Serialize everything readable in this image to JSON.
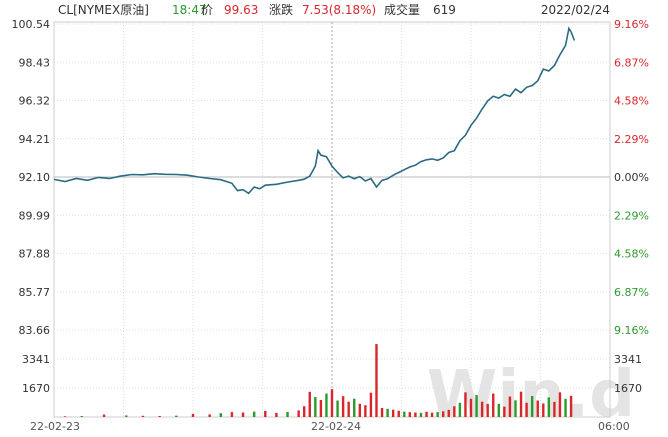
{
  "header": {
    "symbol": "CL[NYMEX原油]",
    "time": "18:47",
    "price_label": "价",
    "price": "99.63",
    "change_label": "涨跌",
    "change": "7.53(8.18%)",
    "volume_label": "成交量",
    "volume": "619",
    "date": "2022/02/24"
  },
  "watermark": "Win.d",
  "colors": {
    "line": "#2a6b82",
    "up": "#d9262b",
    "down": "#2c9a2c",
    "grid": "#dddddd",
    "header_time": "#2c9a2c",
    "header_price": "#d9262b",
    "header_change": "#d9262b",
    "neutral": "#333333"
  },
  "chart_data": {
    "type": "line",
    "prev_close": 92.1,
    "price_ticks": [
      "100.54",
      "98.43",
      "96.32",
      "94.21",
      "92.10",
      "89.99",
      "87.88",
      "85.77",
      "83.66"
    ],
    "pct_ticks": [
      "9.16%",
      "6.87%",
      "4.58%",
      "2.29%",
      "0.00%",
      "2.29%",
      "4.58%",
      "6.87%",
      "9.16%"
    ],
    "price_range": [
      83.66,
      100.54
    ],
    "volume_ticks": [
      "3341",
      "1670"
    ],
    "volume_max": 5011,
    "x_tick_labels": [
      "22-02-23",
      "22-02-24",
      "06:00"
    ],
    "x_range": [
      0,
      100
    ],
    "price_points": [
      [
        0,
        91.97
      ],
      [
        2,
        91.85
      ],
      [
        4,
        92.02
      ],
      [
        6,
        91.92
      ],
      [
        8,
        92.08
      ],
      [
        10,
        92.02
      ],
      [
        12,
        92.15
      ],
      [
        14,
        92.24
      ],
      [
        16,
        92.22
      ],
      [
        18,
        92.28
      ],
      [
        20,
        92.25
      ],
      [
        22,
        92.24
      ],
      [
        24,
        92.2
      ],
      [
        26,
        92.1
      ],
      [
        28,
        92.02
      ],
      [
        30,
        91.95
      ],
      [
        32,
        91.75
      ],
      [
        33,
        91.35
      ],
      [
        34,
        91.4
      ],
      [
        35,
        91.2
      ],
      [
        36,
        91.55
      ],
      [
        37,
        91.45
      ],
      [
        38,
        91.65
      ],
      [
        40,
        91.7
      ],
      [
        42,
        91.82
      ],
      [
        44,
        91.92
      ],
      [
        45,
        91.98
      ],
      [
        46,
        92.15
      ],
      [
        47,
        92.7
      ],
      [
        47.5,
        93.55
      ],
      [
        48,
        93.3
      ],
      [
        49,
        93.22
      ],
      [
        50,
        92.7
      ],
      [
        51,
        92.35
      ],
      [
        52,
        92.05
      ],
      [
        53,
        92.15
      ],
      [
        54,
        92.0
      ],
      [
        55,
        92.12
      ],
      [
        56,
        91.88
      ],
      [
        57,
        92.02
      ],
      [
        58,
        91.55
      ],
      [
        59,
        91.92
      ],
      [
        60,
        92.0
      ],
      [
        61,
        92.2
      ],
      [
        62,
        92.35
      ],
      [
        63,
        92.5
      ],
      [
        64,
        92.65
      ],
      [
        65,
        92.75
      ],
      [
        66,
        92.95
      ],
      [
        67,
        93.05
      ],
      [
        68,
        93.1
      ],
      [
        69,
        93.02
      ],
      [
        70,
        93.15
      ],
      [
        71,
        93.45
      ],
      [
        72,
        93.55
      ],
      [
        73,
        94.1
      ],
      [
        74,
        94.4
      ],
      [
        75,
        94.95
      ],
      [
        76,
        95.35
      ],
      [
        77,
        95.85
      ],
      [
        78,
        96.3
      ],
      [
        79,
        96.55
      ],
      [
        80,
        96.45
      ],
      [
        81,
        96.65
      ],
      [
        82,
        96.55
      ],
      [
        83,
        96.95
      ],
      [
        84,
        96.75
      ],
      [
        85,
        97.05
      ],
      [
        86,
        97.15
      ],
      [
        87,
        97.4
      ],
      [
        88,
        98.05
      ],
      [
        89,
        97.95
      ],
      [
        90,
        98.25
      ],
      [
        91,
        98.85
      ],
      [
        92,
        99.35
      ],
      [
        92.6,
        100.3
      ],
      [
        93,
        100.1
      ],
      [
        93.6,
        99.63
      ]
    ],
    "volume_bars": [
      [
        2,
        40,
        "up"
      ],
      [
        5,
        60,
        "down"
      ],
      [
        9,
        140,
        "up"
      ],
      [
        13,
        90,
        "down"
      ],
      [
        16,
        70,
        "up"
      ],
      [
        19,
        60,
        "up"
      ],
      [
        22,
        80,
        "down"
      ],
      [
        25,
        180,
        "up"
      ],
      [
        28,
        150,
        "up"
      ],
      [
        30,
        220,
        "down"
      ],
      [
        32,
        280,
        "up"
      ],
      [
        34,
        260,
        "up"
      ],
      [
        36,
        310,
        "down"
      ],
      [
        38,
        350,
        "up"
      ],
      [
        40,
        240,
        "up"
      ],
      [
        42,
        290,
        "down"
      ],
      [
        44,
        380,
        "up"
      ],
      [
        45,
        620,
        "up"
      ],
      [
        46,
        1450,
        "up"
      ],
      [
        47,
        1150,
        "down"
      ],
      [
        48,
        980,
        "up"
      ],
      [
        49,
        1350,
        "down"
      ],
      [
        50,
        1600,
        "up"
      ],
      [
        51,
        950,
        "down"
      ],
      [
        52,
        1200,
        "up"
      ],
      [
        53,
        880,
        "up"
      ],
      [
        54,
        1050,
        "down"
      ],
      [
        55,
        760,
        "up"
      ],
      [
        56,
        680,
        "up"
      ],
      [
        57,
        1400,
        "up"
      ],
      [
        58,
        4200,
        "up"
      ],
      [
        59,
        520,
        "up"
      ],
      [
        60,
        470,
        "down"
      ],
      [
        61,
        420,
        "up"
      ],
      [
        62,
        360,
        "up"
      ],
      [
        63,
        310,
        "down"
      ],
      [
        64,
        280,
        "up"
      ],
      [
        65,
        260,
        "up"
      ],
      [
        66,
        240,
        "down"
      ],
      [
        67,
        300,
        "up"
      ],
      [
        68,
        250,
        "up"
      ],
      [
        69,
        280,
        "down"
      ],
      [
        70,
        330,
        "up"
      ],
      [
        71,
        410,
        "up"
      ],
      [
        72,
        620,
        "up"
      ],
      [
        73,
        820,
        "down"
      ],
      [
        74,
        1420,
        "up"
      ],
      [
        75,
        1050,
        "up"
      ],
      [
        76,
        1260,
        "down"
      ],
      [
        77,
        880,
        "up"
      ],
      [
        78,
        760,
        "up"
      ],
      [
        79,
        1350,
        "up"
      ],
      [
        80,
        760,
        "down"
      ],
      [
        81,
        600,
        "up"
      ],
      [
        82,
        1180,
        "up"
      ],
      [
        83,
        960,
        "down"
      ],
      [
        84,
        1460,
        "up"
      ],
      [
        85,
        820,
        "up"
      ],
      [
        86,
        1210,
        "down"
      ],
      [
        87,
        950,
        "up"
      ],
      [
        88,
        780,
        "up"
      ],
      [
        89,
        1130,
        "down"
      ],
      [
        90,
        870,
        "up"
      ],
      [
        91,
        1420,
        "up"
      ],
      [
        92,
        1050,
        "down"
      ],
      [
        93,
        1220,
        "up"
      ]
    ]
  }
}
